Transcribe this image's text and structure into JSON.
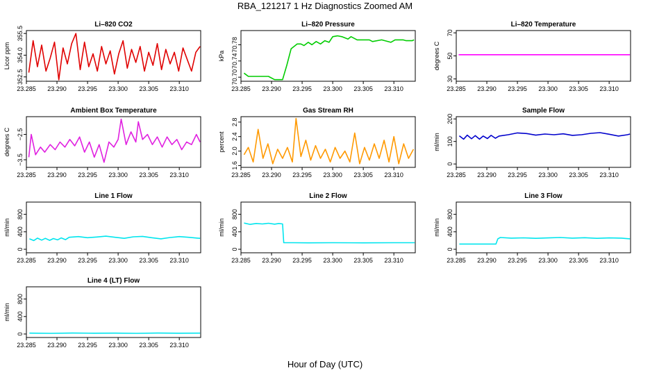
{
  "figure": {
    "title": "RBA_121217  1 Hz Diagnostics Zoomed AM",
    "xlabel": "Hour of Day (UTC)",
    "x_ticks": [
      "23.285",
      "23.290",
      "23.295",
      "23.300",
      "23.305",
      "23.310"
    ]
  },
  "chart_data": [
    {
      "type": "line",
      "title": "Li–820 CO2",
      "ylabel": "Licor ppm",
      "color": "#e00000",
      "xlim": [
        23.285,
        23.3135
      ],
      "ylim": [
        352.2,
        355.7
      ],
      "y_ticks": [
        {
          "v": 352.5,
          "l": "352.5"
        },
        {
          "v": 354.0,
          "l": "354.0"
        },
        {
          "v": 355.5,
          "l": "355.5"
        }
      ],
      "series": [
        {
          "name": "CO2",
          "x": [
            23.2854,
            23.2861,
            23.2868,
            23.2875,
            23.2882,
            23.2889,
            23.2896,
            23.2903,
            23.291,
            23.2917,
            23.2924,
            23.2931,
            23.2938,
            23.2945,
            23.2952,
            23.2959,
            23.2966,
            23.2973,
            23.298,
            23.2987,
            23.2994,
            23.3001,
            23.3008,
            23.3015,
            23.3022,
            23.3029,
            23.3036,
            23.3043,
            23.305,
            23.3057,
            23.3064,
            23.3071,
            23.3078,
            23.3085,
            23.3092,
            23.3099,
            23.3106,
            23.3113,
            23.312,
            23.3127,
            23.3134
          ],
          "y": [
            352.8,
            355.0,
            353.2,
            354.7,
            352.9,
            353.8,
            354.9,
            352.3,
            354.5,
            353.4,
            354.8,
            355.5,
            353.0,
            354.9,
            353.2,
            354.1,
            352.9,
            354.6,
            353.4,
            354.3,
            352.7,
            354.1,
            355.0,
            353.1,
            354.4,
            353.5,
            354.6,
            352.9,
            354.2,
            353.3,
            354.8,
            353.0,
            354.4,
            353.4,
            354.2,
            352.9,
            354.5,
            353.7,
            352.9,
            354.2,
            354.6
          ]
        }
      ]
    },
    {
      "type": "line",
      "title": "Li–820 Pressure",
      "ylabel": "kPa",
      "color": "#00cc00",
      "xlim": [
        23.285,
        23.3135
      ],
      "ylim": [
        70.69,
        70.815
      ],
      "y_ticks": [
        {
          "v": 70.7,
          "l": "70.70"
        },
        {
          "v": 70.74,
          "l": "70.74"
        },
        {
          "v": 70.78,
          "l": "70.78"
        }
      ],
      "series": [
        {
          "name": "Pressure",
          "x": [
            23.2855,
            23.2862,
            23.288,
            23.2895,
            23.2905,
            23.2918,
            23.2925,
            23.2932,
            23.2942,
            23.2948,
            23.2953,
            23.296,
            23.2966,
            23.2973,
            23.298,
            23.2987,
            23.2994,
            23.3,
            23.3008,
            23.3015,
            23.3025,
            23.303,
            23.304,
            23.3052,
            23.306,
            23.3065,
            23.308,
            23.3095,
            23.3102,
            23.3115,
            23.312,
            23.313,
            23.3133
          ],
          "y": [
            70.71,
            70.702,
            70.702,
            70.702,
            70.694,
            70.694,
            70.73,
            70.77,
            70.782,
            70.782,
            70.778,
            70.786,
            70.78,
            70.788,
            70.782,
            70.79,
            70.786,
            70.8,
            70.802,
            70.8,
            70.794,
            70.8,
            70.792,
            70.792,
            70.792,
            70.788,
            70.792,
            70.786,
            70.792,
            70.792,
            70.79,
            70.79,
            70.792
          ]
        }
      ]
    },
    {
      "type": "line",
      "title": "Li–820 Temperature",
      "ylabel": "degrees C",
      "color": "#ff00ff",
      "xlim": [
        23.285,
        23.3135
      ],
      "ylim": [
        28,
        72
      ],
      "y_ticks": [
        {
          "v": 30,
          "l": "30"
        },
        {
          "v": 50,
          "l": "50"
        },
        {
          "v": 70,
          "l": "70"
        }
      ],
      "series": [
        {
          "name": "Temperature",
          "x": [
            23.2854,
            23.3134
          ],
          "y": [
            51.0,
            51.0
          ]
        }
      ]
    },
    {
      "type": "line",
      "title": "Ambient Box Temperature",
      "ylabel": "degrees C",
      "color": "#e020e0",
      "xlim": [
        23.285,
        23.3135
      ],
      "ylim": [
        -3.8,
        -1.8
      ],
      "y_ticks": [
        {
          "v": -3.5,
          "l": "−3.5"
        },
        {
          "v": -2.5,
          "l": "−2.5"
        }
      ],
      "series": [
        {
          "name": "Ambient Box",
          "x": [
            23.2854,
            23.2858,
            23.2865,
            23.2873,
            23.288,
            23.2889,
            23.2897,
            23.2905,
            23.2913,
            23.2921,
            23.2929,
            23.2937,
            23.2945,
            23.2953,
            23.2961,
            23.2969,
            23.2977,
            23.2985,
            23.2993,
            23.3,
            23.3005,
            23.3013,
            23.3021,
            23.3029,
            23.3033,
            23.304,
            23.3048,
            23.3056,
            23.3064,
            23.3072,
            23.308,
            23.3088,
            23.3096,
            23.3104,
            23.3112,
            23.312,
            23.3128,
            23.3134
          ],
          "y": [
            -3.4,
            -2.5,
            -3.3,
            -3.0,
            -3.2,
            -2.9,
            -3.1,
            -2.8,
            -3.0,
            -2.7,
            -2.95,
            -2.6,
            -3.2,
            -2.8,
            -3.4,
            -2.9,
            -3.6,
            -2.8,
            -3.0,
            -2.7,
            -1.9,
            -2.9,
            -2.4,
            -2.8,
            -2.0,
            -2.7,
            -2.5,
            -2.9,
            -2.6,
            -3.0,
            -2.6,
            -2.9,
            -2.7,
            -3.1,
            -2.8,
            -2.9,
            -2.5,
            -2.8
          ]
        }
      ]
    },
    {
      "type": "line",
      "title": "Gas Stream RH",
      "ylabel": "percent",
      "color": "#ff9900",
      "xlim": [
        23.285,
        23.3135
      ],
      "ylim": [
        1.55,
        2.95
      ],
      "y_ticks": [
        {
          "v": 1.6,
          "l": "1.6"
        },
        {
          "v": 2.0,
          "l": "2.0"
        },
        {
          "v": 2.4,
          "l": "2.4"
        },
        {
          "v": 2.8,
          "l": "2.8"
        }
      ],
      "series": [
        {
          "name": "RH",
          "x": [
            23.2855,
            23.2862,
            23.287,
            23.2878,
            23.2886,
            23.2894,
            23.2902,
            23.291,
            23.2918,
            23.2926,
            23.2934,
            23.294,
            23.2948,
            23.2956,
            23.2964,
            23.2972,
            23.298,
            23.2988,
            23.2996,
            23.3004,
            23.3012,
            23.302,
            23.3028,
            23.3036,
            23.3044,
            23.3052,
            23.306,
            23.3068,
            23.3076,
            23.3084,
            23.3092,
            23.31,
            23.3108,
            23.3116,
            23.3124,
            23.3132
          ],
          "y": [
            1.9,
            2.1,
            1.7,
            2.6,
            1.8,
            2.2,
            1.65,
            2.05,
            1.8,
            2.1,
            1.7,
            2.9,
            1.85,
            2.3,
            1.75,
            2.15,
            1.8,
            2.05,
            1.7,
            2.1,
            1.8,
            2.0,
            1.7,
            2.5,
            1.65,
            2.1,
            1.75,
            2.2,
            1.8,
            2.3,
            1.7,
            2.4,
            1.65,
            2.2,
            1.8,
            2.05
          ]
        }
      ]
    },
    {
      "type": "line",
      "title": "Sample Flow",
      "ylabel": "ml/min",
      "color": "#0000cc",
      "xlim": [
        23.285,
        23.3135
      ],
      "ylim": [
        -15,
        210
      ],
      "y_ticks": [
        {
          "v": 0,
          "l": "0"
        },
        {
          "v": 100,
          "l": "100"
        },
        {
          "v": 200,
          "l": "200"
        }
      ],
      "series": [
        {
          "name": "Sample Flow",
          "x": [
            23.2855,
            23.2862,
            23.2868,
            23.2875,
            23.2881,
            23.2888,
            23.2894,
            23.2901,
            23.2907,
            23.2914,
            23.292,
            23.2935,
            23.295,
            23.2965,
            23.298,
            23.2995,
            23.301,
            23.3025,
            23.304,
            23.3055,
            23.307,
            23.3085,
            23.31,
            23.3115,
            23.313,
            23.3134
          ],
          "y": [
            125,
            110,
            128,
            112,
            126,
            110,
            124,
            113,
            127,
            114,
            124,
            130,
            138,
            135,
            128,
            133,
            130,
            134,
            127,
            130,
            136,
            139,
            132,
            124,
            130,
            133
          ]
        }
      ]
    },
    {
      "type": "line",
      "title": "Line 1 Flow",
      "ylabel": "ml/min",
      "color": "#00e5ee",
      "xlim": [
        23.285,
        23.3135
      ],
      "ylim": [
        -80,
        1080
      ],
      "y_ticks": [
        {
          "v": 0,
          "l": "0"
        },
        {
          "v": 400,
          "l": "400"
        },
        {
          "v": 800,
          "l": "800"
        }
      ],
      "series": [
        {
          "name": "Line 1",
          "x": [
            23.2855,
            23.2862,
            23.2868,
            23.2875,
            23.2881,
            23.2888,
            23.2894,
            23.2901,
            23.2907,
            23.2914,
            23.292,
            23.2935,
            23.295,
            23.2965,
            23.298,
            23.2995,
            23.301,
            23.3025,
            23.304,
            23.3055,
            23.307,
            23.3085,
            23.31,
            23.3115,
            23.313,
            23.3134
          ],
          "y": [
            240,
            200,
            255,
            210,
            250,
            205,
            245,
            215,
            260,
            220,
            275,
            290,
            265,
            280,
            300,
            275,
            250,
            285,
            295,
            265,
            240,
            270,
            290,
            275,
            255,
            250
          ]
        }
      ]
    },
    {
      "type": "line",
      "title": "Line 2 Flow",
      "ylabel": "ml/min",
      "color": "#00e5ee",
      "xlim": [
        23.285,
        23.3135
      ],
      "ylim": [
        -80,
        1080
      ],
      "y_ticks": [
        {
          "v": 0,
          "l": "0"
        },
        {
          "v": 400,
          "l": "400"
        },
        {
          "v": 800,
          "l": "800"
        }
      ],
      "series": [
        {
          "name": "Line 2",
          "x": [
            23.2855,
            23.2865,
            23.2875,
            23.2885,
            23.2895,
            23.2905,
            23.2912,
            23.2918,
            23.292,
            23.2935,
            23.296,
            23.3,
            23.305,
            23.31,
            23.3134
          ],
          "y": [
            600,
            570,
            590,
            580,
            595,
            575,
            590,
            580,
            150,
            150,
            148,
            150,
            148,
            150,
            150
          ]
        }
      ]
    },
    {
      "type": "line",
      "title": "Line 3 Flow",
      "ylabel": "ml/min",
      "color": "#00e5ee",
      "xlim": [
        23.285,
        23.3135
      ],
      "ylim": [
        -80,
        1080
      ],
      "y_ticks": [
        {
          "v": 0,
          "l": "0"
        },
        {
          "v": 400,
          "l": "400"
        },
        {
          "v": 800,
          "l": "800"
        }
      ],
      "series": [
        {
          "name": "Line 3",
          "x": [
            23.2855,
            23.288,
            23.29,
            23.2915,
            23.2918,
            23.2922,
            23.294,
            23.296,
            23.298,
            23.3,
            23.302,
            23.304,
            23.306,
            23.308,
            23.31,
            23.312,
            23.3134
          ],
          "y": [
            120,
            120,
            120,
            120,
            240,
            270,
            255,
            262,
            250,
            260,
            270,
            255,
            265,
            250,
            260,
            255,
            240
          ]
        }
      ]
    },
    {
      "type": "line",
      "title": "Line 4 (LT) Flow",
      "ylabel": "ml/min",
      "color": "#00e5ee",
      "xlim": [
        23.285,
        23.3135
      ],
      "ylim": [
        -80,
        1080
      ],
      "y_ticks": [
        {
          "v": 0,
          "l": "0"
        },
        {
          "v": 400,
          "l": "400"
        },
        {
          "v": 800,
          "l": "800"
        }
      ],
      "series": [
        {
          "name": "Line 4",
          "x": [
            23.2855,
            23.289,
            23.2925,
            23.296,
            23.2995,
            23.303,
            23.3065,
            23.31,
            23.3134
          ],
          "y": [
            20,
            15,
            22,
            18,
            20,
            16,
            22,
            18,
            20
          ]
        }
      ]
    }
  ]
}
